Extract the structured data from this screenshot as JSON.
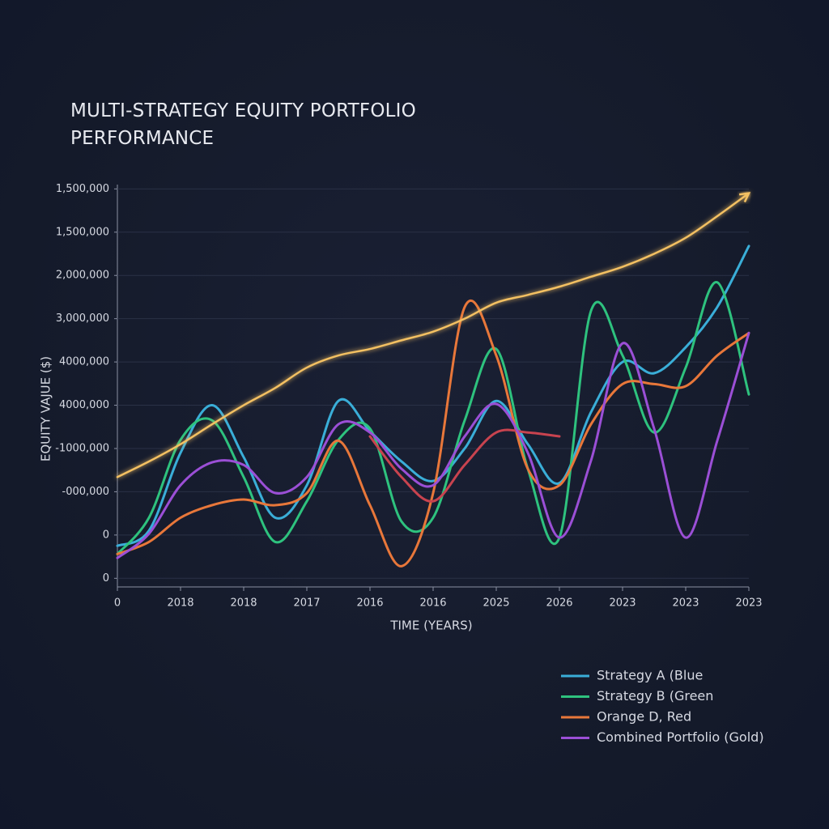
{
  "chart_data": {
    "type": "line",
    "title": "MULTI-STRATEGY EQUITY PORTFOLIO PERFORMANCE",
    "x_label": "TIME (YEARS)",
    "y_label": "EQUITY VAJUE  ($)",
    "x": [
      0,
      0.5,
      1,
      1.5,
      2,
      2.5,
      3,
      3.5,
      4,
      4.5,
      5,
      5.5,
      6,
      6.5,
      7,
      7.5,
      8,
      8.5,
      9,
      9.5,
      10
    ],
    "xlim": [
      0,
      10
    ],
    "xticks": [
      0,
      {
        "value": 1,
        "label": "2018"
      },
      {
        "value": 2,
        "label": "2018"
      },
      {
        "value": 3,
        "label": "2017"
      },
      {
        "value": 4,
        "label": "2016"
      },
      {
        "value": 5,
        "label": "2016"
      },
      {
        "value": 6,
        "label": "2025"
      },
      {
        "value": 7,
        "label": "2026"
      },
      {
        "value": 8,
        "label": "2023"
      },
      {
        "value": 9,
        "label": "2023"
      },
      {
        "value": 10,
        "label": "2023"
      }
    ],
    "ylim": [
      -0.2,
      9.1
    ],
    "yticks": [
      0,
      {
        "value": 1,
        "label": "0"
      },
      {
        "value": 2,
        "label": "-000,000"
      },
      {
        "value": 3,
        "label": "-1000,000"
      },
      {
        "value": 4,
        "label": "4000,000"
      },
      {
        "value": 5,
        "label": "4000,000"
      },
      {
        "value": 6,
        "label": "3,000,000"
      },
      {
        "value": 7,
        "label": "2,000,000"
      },
      {
        "value": 8,
        "label": "1,500,000"
      },
      {
        "value": 9,
        "label": "1,500,000"
      }
    ],
    "grid": true,
    "legend_position": "bottom-right",
    "series": [
      {
        "name": "Strategy A (Blue",
        "color": "#3aaed8",
        "values": [
          0.75,
          1.1,
          2.9,
          4.0,
          2.8,
          1.4,
          2.15,
          4.1,
          3.4,
          2.7,
          2.25,
          3.0,
          4.1,
          3.1,
          2.2,
          3.84,
          5.0,
          4.74,
          5.34,
          6.27,
          7.68
        ]
      },
      {
        "name": "Strategy B (Green",
        "color": "#2ec27e",
        "values": [
          0.56,
          1.4,
          3.2,
          3.65,
          2.34,
          0.84,
          1.78,
          3.2,
          3.46,
          1.31,
          1.4,
          3.65,
          5.3,
          2.53,
          0.94,
          6.18,
          5.15,
          3.37,
          4.87,
          6.84,
          4.25
        ]
      },
      {
        "name": "Orange D, Red",
        "color": "#e8773a",
        "values": [
          0.56,
          0.84,
          1.4,
          1.69,
          1.82,
          1.69,
          1.97,
          3.18,
          1.69,
          0.28,
          1.97,
          6.27,
          5.15,
          2.53,
          2.15,
          3.56,
          4.49,
          4.49,
          4.44,
          5.15,
          5.67
        ]
      },
      {
        "color": "#c8434f",
        "values": [
          null,
          null,
          null,
          null,
          null,
          null,
          null,
          null,
          3.28,
          2.34,
          1.78,
          2.62,
          3.37,
          3.37,
          3.28,
          null,
          null,
          null,
          null,
          null,
          null
        ]
      },
      {
        "name": "Combined Portfolio (Gold)",
        "color": "#9b4fd6",
        "values": [
          0.47,
          1.03,
          2.15,
          2.68,
          2.62,
          1.97,
          2.34,
          3.56,
          3.37,
          2.53,
          2.15,
          3.28,
          4.03,
          2.9,
          0.94,
          2.72,
          5.43,
          3.46,
          0.94,
          3.18,
          5.67
        ]
      },
      {
        "color": "#f3c062",
        "values": [
          2.34,
          2.7,
          3.1,
          3.56,
          4.0,
          4.4,
          4.87,
          5.15,
          5.3,
          5.5,
          5.7,
          6.0,
          6.37,
          6.55,
          6.74,
          6.97,
          7.2,
          7.5,
          7.87,
          8.37,
          8.9
        ]
      }
    ]
  }
}
